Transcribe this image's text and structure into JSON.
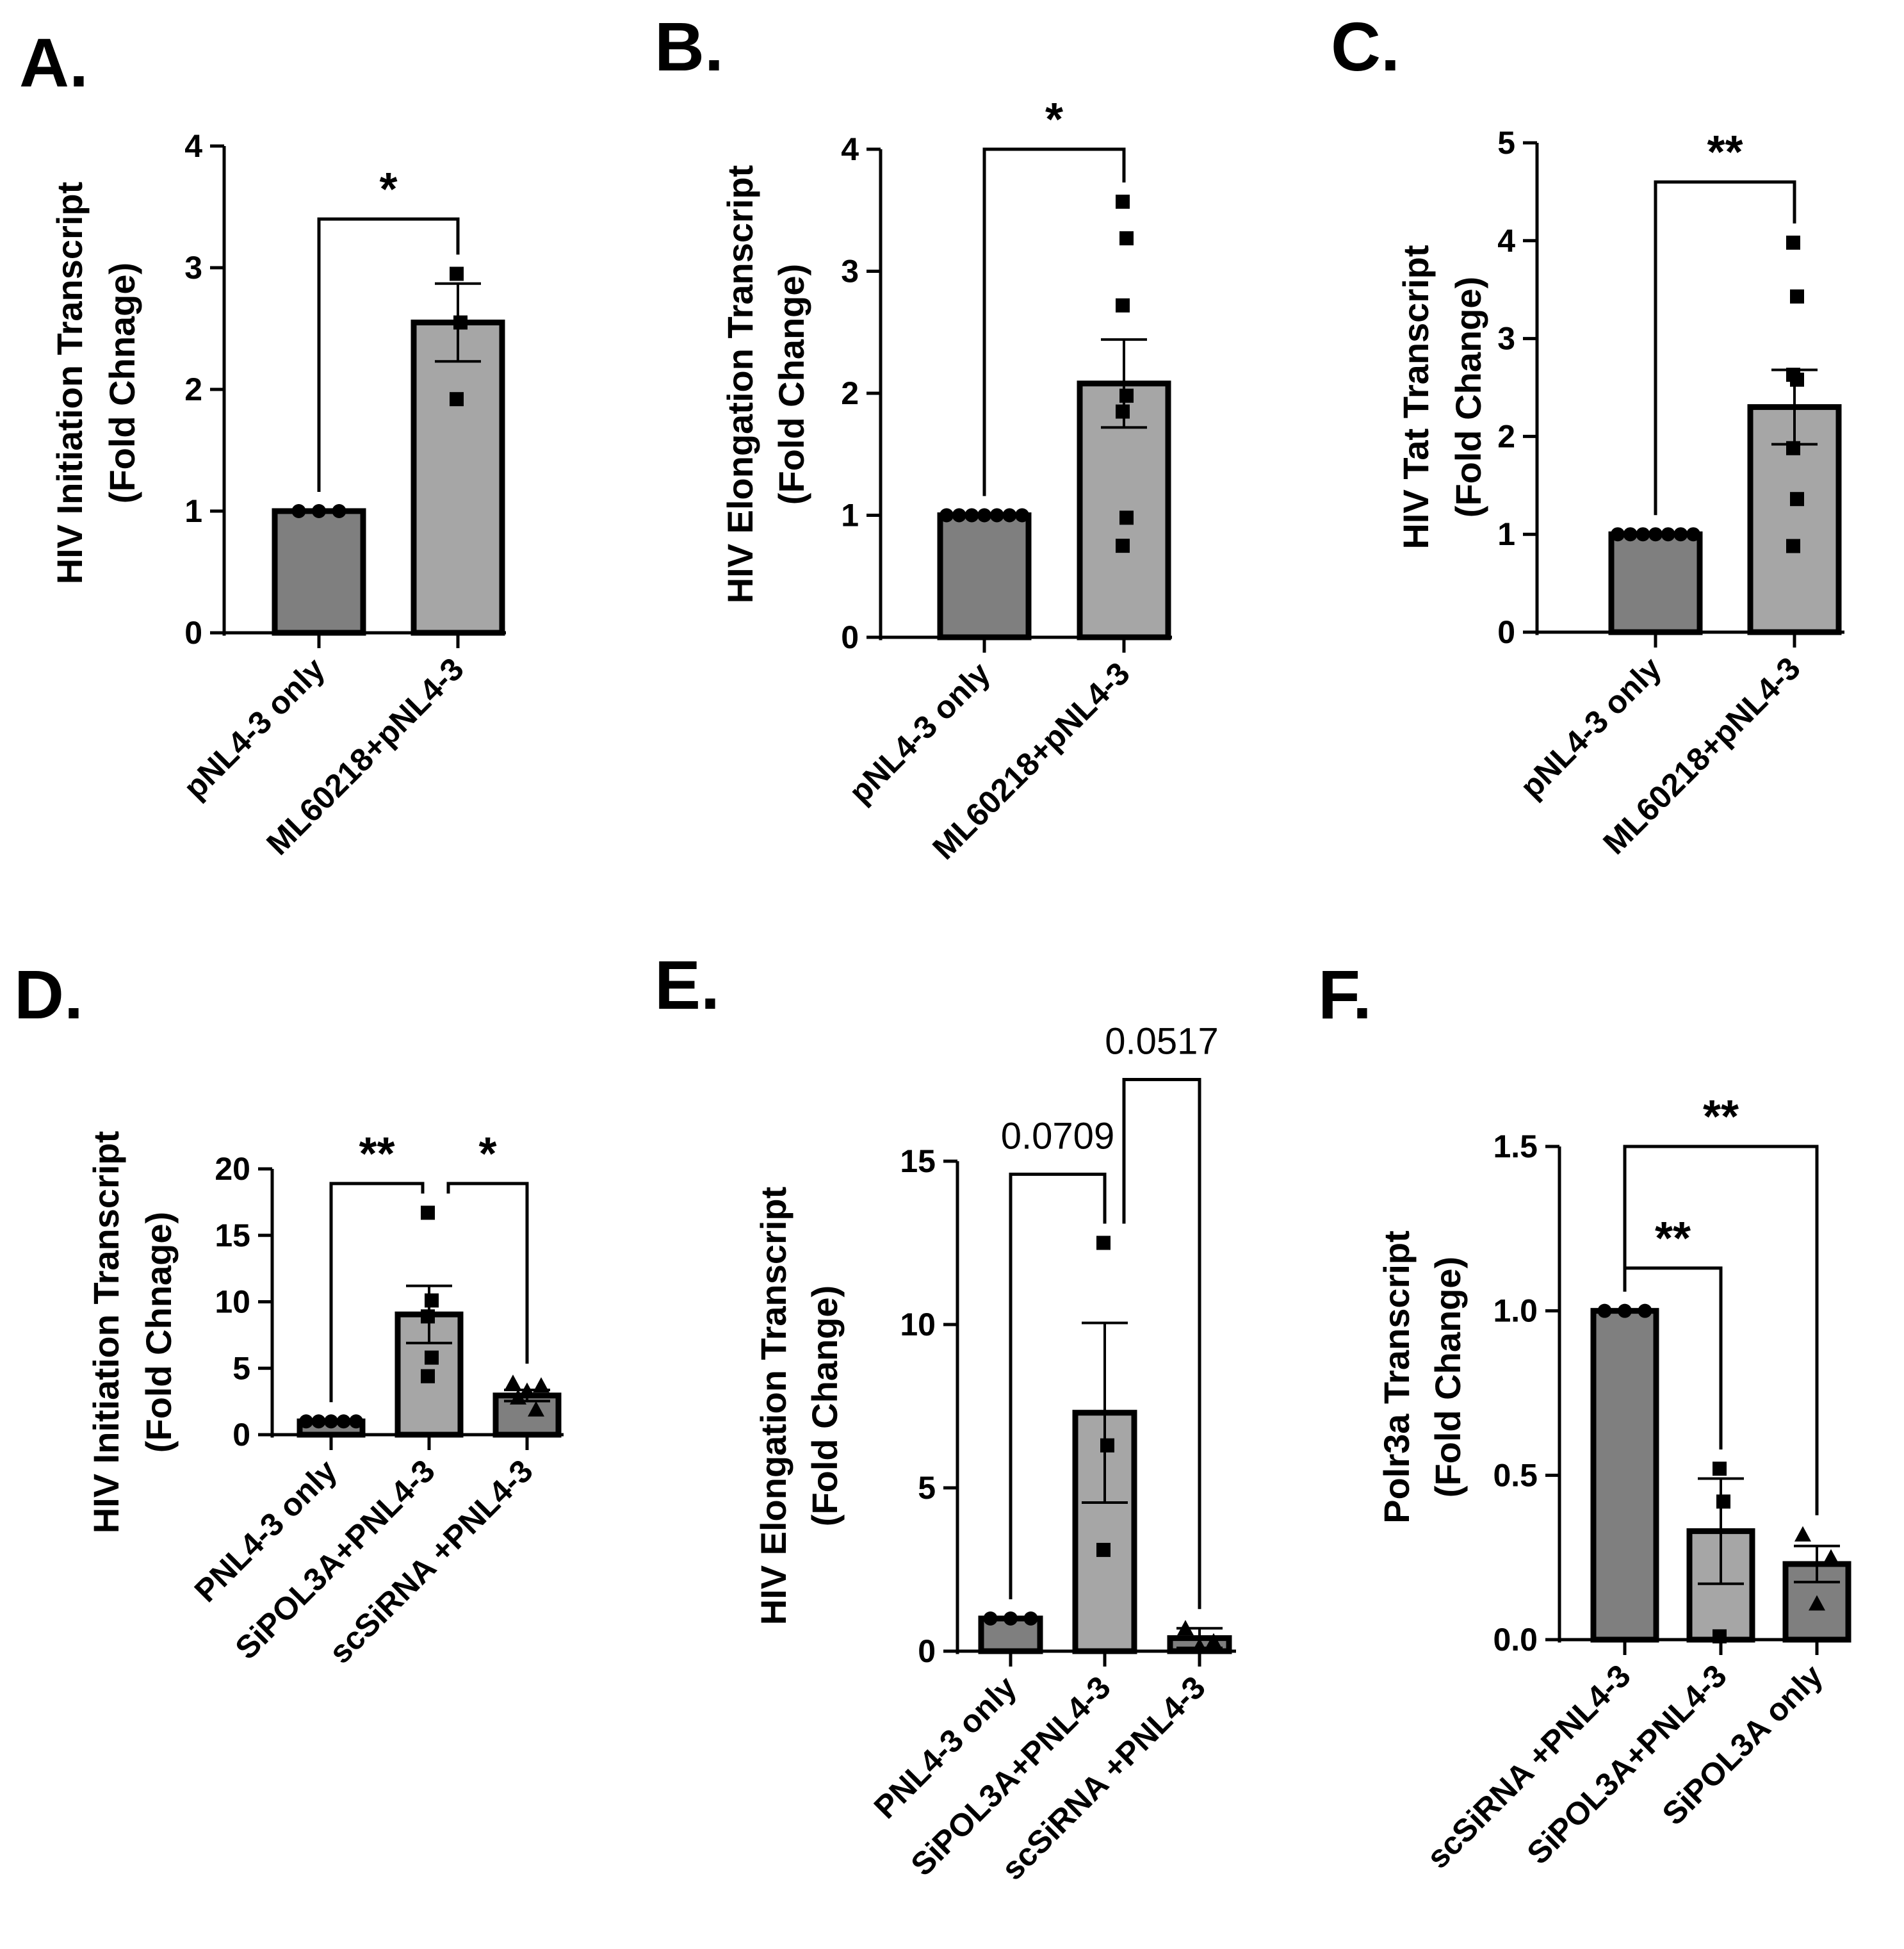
{
  "colors": {
    "dark_bar": "#7f7f7f",
    "light_bar": "#a6a6a6",
    "ink": "#000000"
  },
  "chart_data": [
    {
      "panel": "A.",
      "type": "bar",
      "ylabel": [
        "HIV Initiation Transcript",
        "(Fold Chnage)"
      ],
      "categories": [
        "pNL4-3 only",
        "ML60218+pNL4-3"
      ],
      "ylim": [
        0,
        4
      ],
      "yticks": [
        0,
        1,
        2,
        3,
        4
      ],
      "ytick_labels": [
        "0",
        "1",
        "2",
        "3",
        "4"
      ],
      "bars": [
        {
          "mean": 1.0,
          "sem": 0,
          "points": [
            1,
            1,
            1
          ],
          "marker": "circle",
          "shade": "dark"
        },
        {
          "mean": 2.55,
          "sem": 0.32,
          "points": [
            2.95,
            2.55,
            1.92
          ],
          "marker": "square",
          "shade": "light"
        }
      ],
      "comparisons": [
        {
          "from": 0,
          "to": 1,
          "label": "*",
          "y": 3.4,
          "big": true
        }
      ]
    },
    {
      "panel": "B.",
      "type": "bar",
      "ylabel": [
        "HIV Elongation Transcript",
        "(Fold Change)"
      ],
      "categories": [
        "pNL4-3 only",
        "ML60218+pNL4-3"
      ],
      "ylim": [
        0,
        4
      ],
      "yticks": [
        0,
        1,
        2,
        3,
        4
      ],
      "ytick_labels": [
        "0",
        "1",
        "2",
        "3",
        "4"
      ],
      "bars": [
        {
          "mean": 1.0,
          "sem": 0,
          "points": [
            1,
            1,
            1,
            1,
            1,
            1,
            1
          ],
          "marker": "circle",
          "shade": "dark"
        },
        {
          "mean": 2.08,
          "sem": 0.36,
          "points": [
            3.57,
            3.27,
            2.72,
            1.98,
            1.85,
            0.98,
            0.75
          ],
          "marker": "square",
          "shade": "light"
        }
      ],
      "comparisons": [
        {
          "from": 0,
          "to": 1,
          "label": "*",
          "y": 4.0,
          "big": true
        }
      ]
    },
    {
      "panel": "C.",
      "type": "bar",
      "ylabel": [
        "HIV Tat Transcript",
        "(Fold Change)"
      ],
      "categories": [
        "pNL4-3 only",
        "ML60218+pNL4-3"
      ],
      "ylim": [
        0,
        5
      ],
      "yticks": [
        0,
        1,
        2,
        3,
        4,
        5
      ],
      "ytick_labels": [
        "0",
        "1",
        "2",
        "3",
        "4",
        "5"
      ],
      "bars": [
        {
          "mean": 1.0,
          "sem": 0,
          "points": [
            1,
            1,
            1,
            1,
            1,
            1,
            1
          ],
          "marker": "circle",
          "shade": "dark"
        },
        {
          "mean": 2.3,
          "sem": 0.38,
          "points": [
            3.98,
            3.43,
            2.63,
            2.58,
            1.88,
            1.36,
            0.88
          ],
          "marker": "square",
          "shade": "light"
        }
      ],
      "comparisons": [
        {
          "from": 0,
          "to": 1,
          "label": "**",
          "y": 4.6,
          "big": true
        }
      ]
    },
    {
      "panel": "D.",
      "type": "bar",
      "ylabel": [
        "HIV Initiation Transcript",
        "(Fold Chnage)"
      ],
      "categories": [
        "PNL4-3 only",
        "SiPOL3A+PNL4-3",
        "scSiRNA +PNL4-3"
      ],
      "ylim": [
        0,
        20
      ],
      "yticks": [
        0,
        5,
        10,
        15,
        20
      ],
      "ytick_labels": [
        "0",
        "5",
        "10",
        "15",
        "20"
      ],
      "bars": [
        {
          "mean": 1.0,
          "sem": 0,
          "points": [
            1,
            1,
            1,
            1,
            1
          ],
          "marker": "circle",
          "shade": "dark"
        },
        {
          "mean": 9.05,
          "sem": 2.15,
          "points": [
            16.7,
            10.1,
            8.9,
            5.8,
            4.4
          ],
          "marker": "square",
          "shade": "light"
        },
        {
          "mean": 2.95,
          "sem": 0.42,
          "points": [
            3.9,
            3.7,
            3.3,
            2.8,
            1.9
          ],
          "marker": "triangle",
          "shade": "dark"
        }
      ],
      "comparisons": [
        {
          "from": 0,
          "to": 1,
          "label": "**",
          "y": 18.9,
          "big": true
        },
        {
          "from": 1,
          "to": 2,
          "label": "*",
          "y": 18.9,
          "big": true
        }
      ]
    },
    {
      "panel": "E.",
      "type": "bar",
      "ylabel": [
        "HIV Elongation Transcript",
        "(Fold Change)"
      ],
      "categories": [
        "PNL4-3 only",
        "SiPOL3A+PNL4-3",
        "scSiRNA +PNL4-3"
      ],
      "ylim": [
        0,
        15
      ],
      "yticks": [
        0,
        5,
        10,
        15
      ],
      "ytick_labels": [
        "0",
        "5",
        "10",
        "15"
      ],
      "bars": [
        {
          "mean": 1.0,
          "sem": 0,
          "points": [
            1,
            1,
            1
          ],
          "marker": "circle",
          "shade": "dark"
        },
        {
          "mean": 7.3,
          "sem": 2.75,
          "points": [
            12.5,
            6.3,
            3.1
          ],
          "marker": "square",
          "shade": "light"
        },
        {
          "mean": 0.4,
          "sem": 0.3,
          "points": [
            0.7,
            0.3,
            0.15
          ],
          "marker": "triangle",
          "shade": "dark"
        }
      ],
      "comparisons": [
        {
          "from": 0,
          "to": 1,
          "label": "0.0709",
          "y": 14.6,
          "big": false
        },
        {
          "from": 1,
          "to": 2,
          "label": "0.0517",
          "y": 17.5,
          "big": false
        }
      ]
    },
    {
      "panel": "F.",
      "type": "bar",
      "ylabel": [
        "Polr3a Transcript",
        "(Fold Change)"
      ],
      "categories": [
        "scSiRNA +PNL4-3",
        "SiPOL3A+PNL4-3",
        "SiPOL3A only"
      ],
      "ylim": [
        0,
        1.5
      ],
      "yticks": [
        0,
        0.5,
        1.0,
        1.5
      ],
      "ytick_labels": [
        "0.0",
        "0.5",
        "1.0",
        "1.5"
      ],
      "bars": [
        {
          "mean": 1.0,
          "sem": 0,
          "points": [
            1,
            1,
            1
          ],
          "marker": "circle",
          "shade": "dark"
        },
        {
          "mean": 0.33,
          "sem": 0.16,
          "points": [
            0.52,
            0.42,
            0.01
          ],
          "marker": "square",
          "shade": "light"
        },
        {
          "mean": 0.23,
          "sem": 0.055,
          "points": [
            0.32,
            0.25,
            0.11
          ],
          "marker": "triangle",
          "shade": "dark"
        }
      ],
      "comparisons": [
        {
          "from": 0,
          "to": 2,
          "label": "**",
          "y": 1.5,
          "big": true
        },
        {
          "from": 0,
          "to": 1,
          "label": "**",
          "y": 1.13,
          "big": true
        }
      ]
    }
  ]
}
